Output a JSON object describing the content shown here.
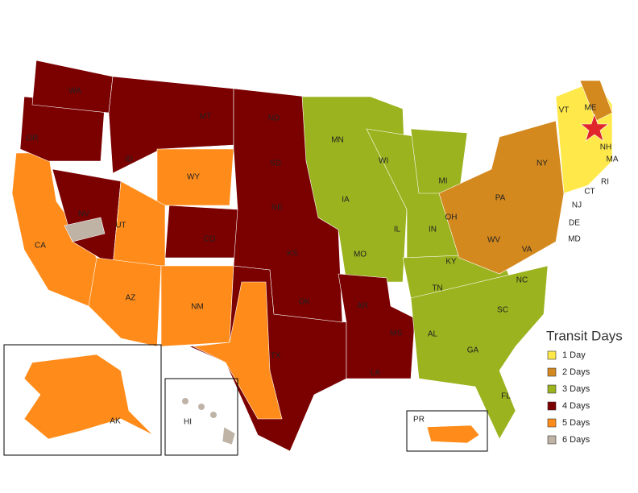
{
  "states": [
    "WA",
    "OR",
    "MT",
    "ID",
    "WY",
    "ND",
    "SD",
    "NE",
    "NV",
    "UT",
    "CO",
    "CA",
    "KS",
    "MO",
    "IA",
    "MN",
    "WI",
    "MI",
    "IL",
    "IN",
    "OH",
    "PA",
    "NY",
    "VT",
    "ME",
    "NH",
    "MA",
    "RI",
    "CT",
    "NJ",
    "DE",
    "MD",
    "WV",
    "VA",
    "KY",
    "TN",
    "NC",
    "SC",
    "GA",
    "AL",
    "MS",
    "LA",
    "AR",
    "OK",
    "TX",
    "NM",
    "AZ",
    "FL",
    "AK",
    "HI",
    "PR"
  ],
  "legend": {
    "title": "Transit Days",
    "items": [
      {
        "label": "1 Day",
        "color": "#ffe94a"
      },
      {
        "label": "2 Days",
        "color": "#d4891e"
      },
      {
        "label": "3 Days",
        "color": "#9bb31e"
      },
      {
        "label": "4 Days",
        "color": "#7b0000"
      },
      {
        "label": "5 Days",
        "color": "#ff8c1a"
      },
      {
        "label": "6 Days",
        "color": "#bfb3a6"
      }
    ]
  }
}
